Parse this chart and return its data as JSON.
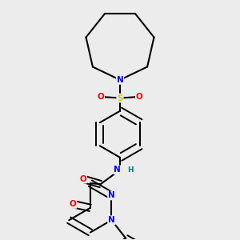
{
  "background_color": "#ececec",
  "bond_color": "#000000",
  "atom_colors": {
    "N": "#0000ff",
    "O": "#ff0000",
    "S": "#cccc00",
    "H": "#008080",
    "C": "#000000"
  },
  "figsize": [
    3.0,
    3.0
  ],
  "dpi": 100
}
